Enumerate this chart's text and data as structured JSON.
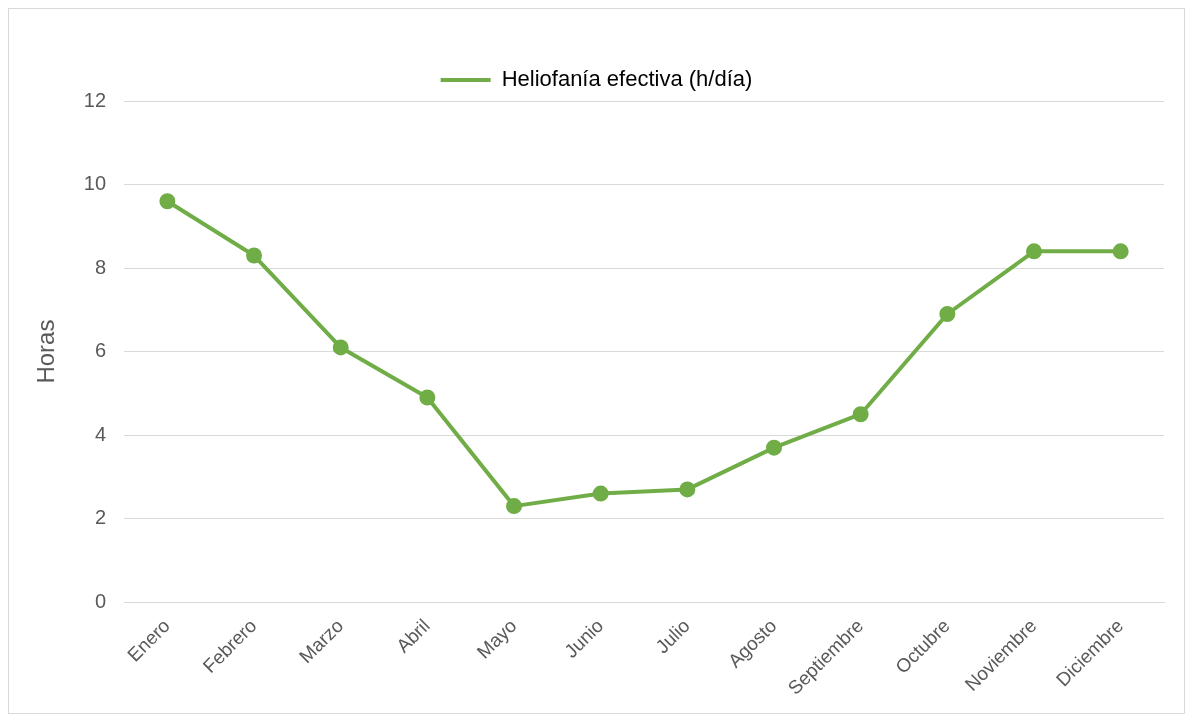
{
  "chart_data": {
    "type": "line",
    "ylabel": "Horas",
    "categories": [
      "Enero",
      "Febrero",
      "Marzo",
      "Abril",
      "Mayo",
      "Junio",
      "Julio",
      "Agosto",
      "Septiembre",
      "Octubre",
      "Noviembre",
      "Diciembre"
    ],
    "series": [
      {
        "name": "Heliofanía efectiva (h/día)",
        "color": "#70ad47",
        "values": [
          9.6,
          8.3,
          6.1,
          4.9,
          2.3,
          2.6,
          2.7,
          3.7,
          4.5,
          6.9,
          8.4,
          8.4
        ]
      }
    ],
    "ylim": [
      0,
      12
    ],
    "yticks": [
      0,
      2,
      4,
      6,
      8,
      10,
      12
    ],
    "grid": "y",
    "legend": "top",
    "marker": "circle",
    "line_style": "solid"
  }
}
